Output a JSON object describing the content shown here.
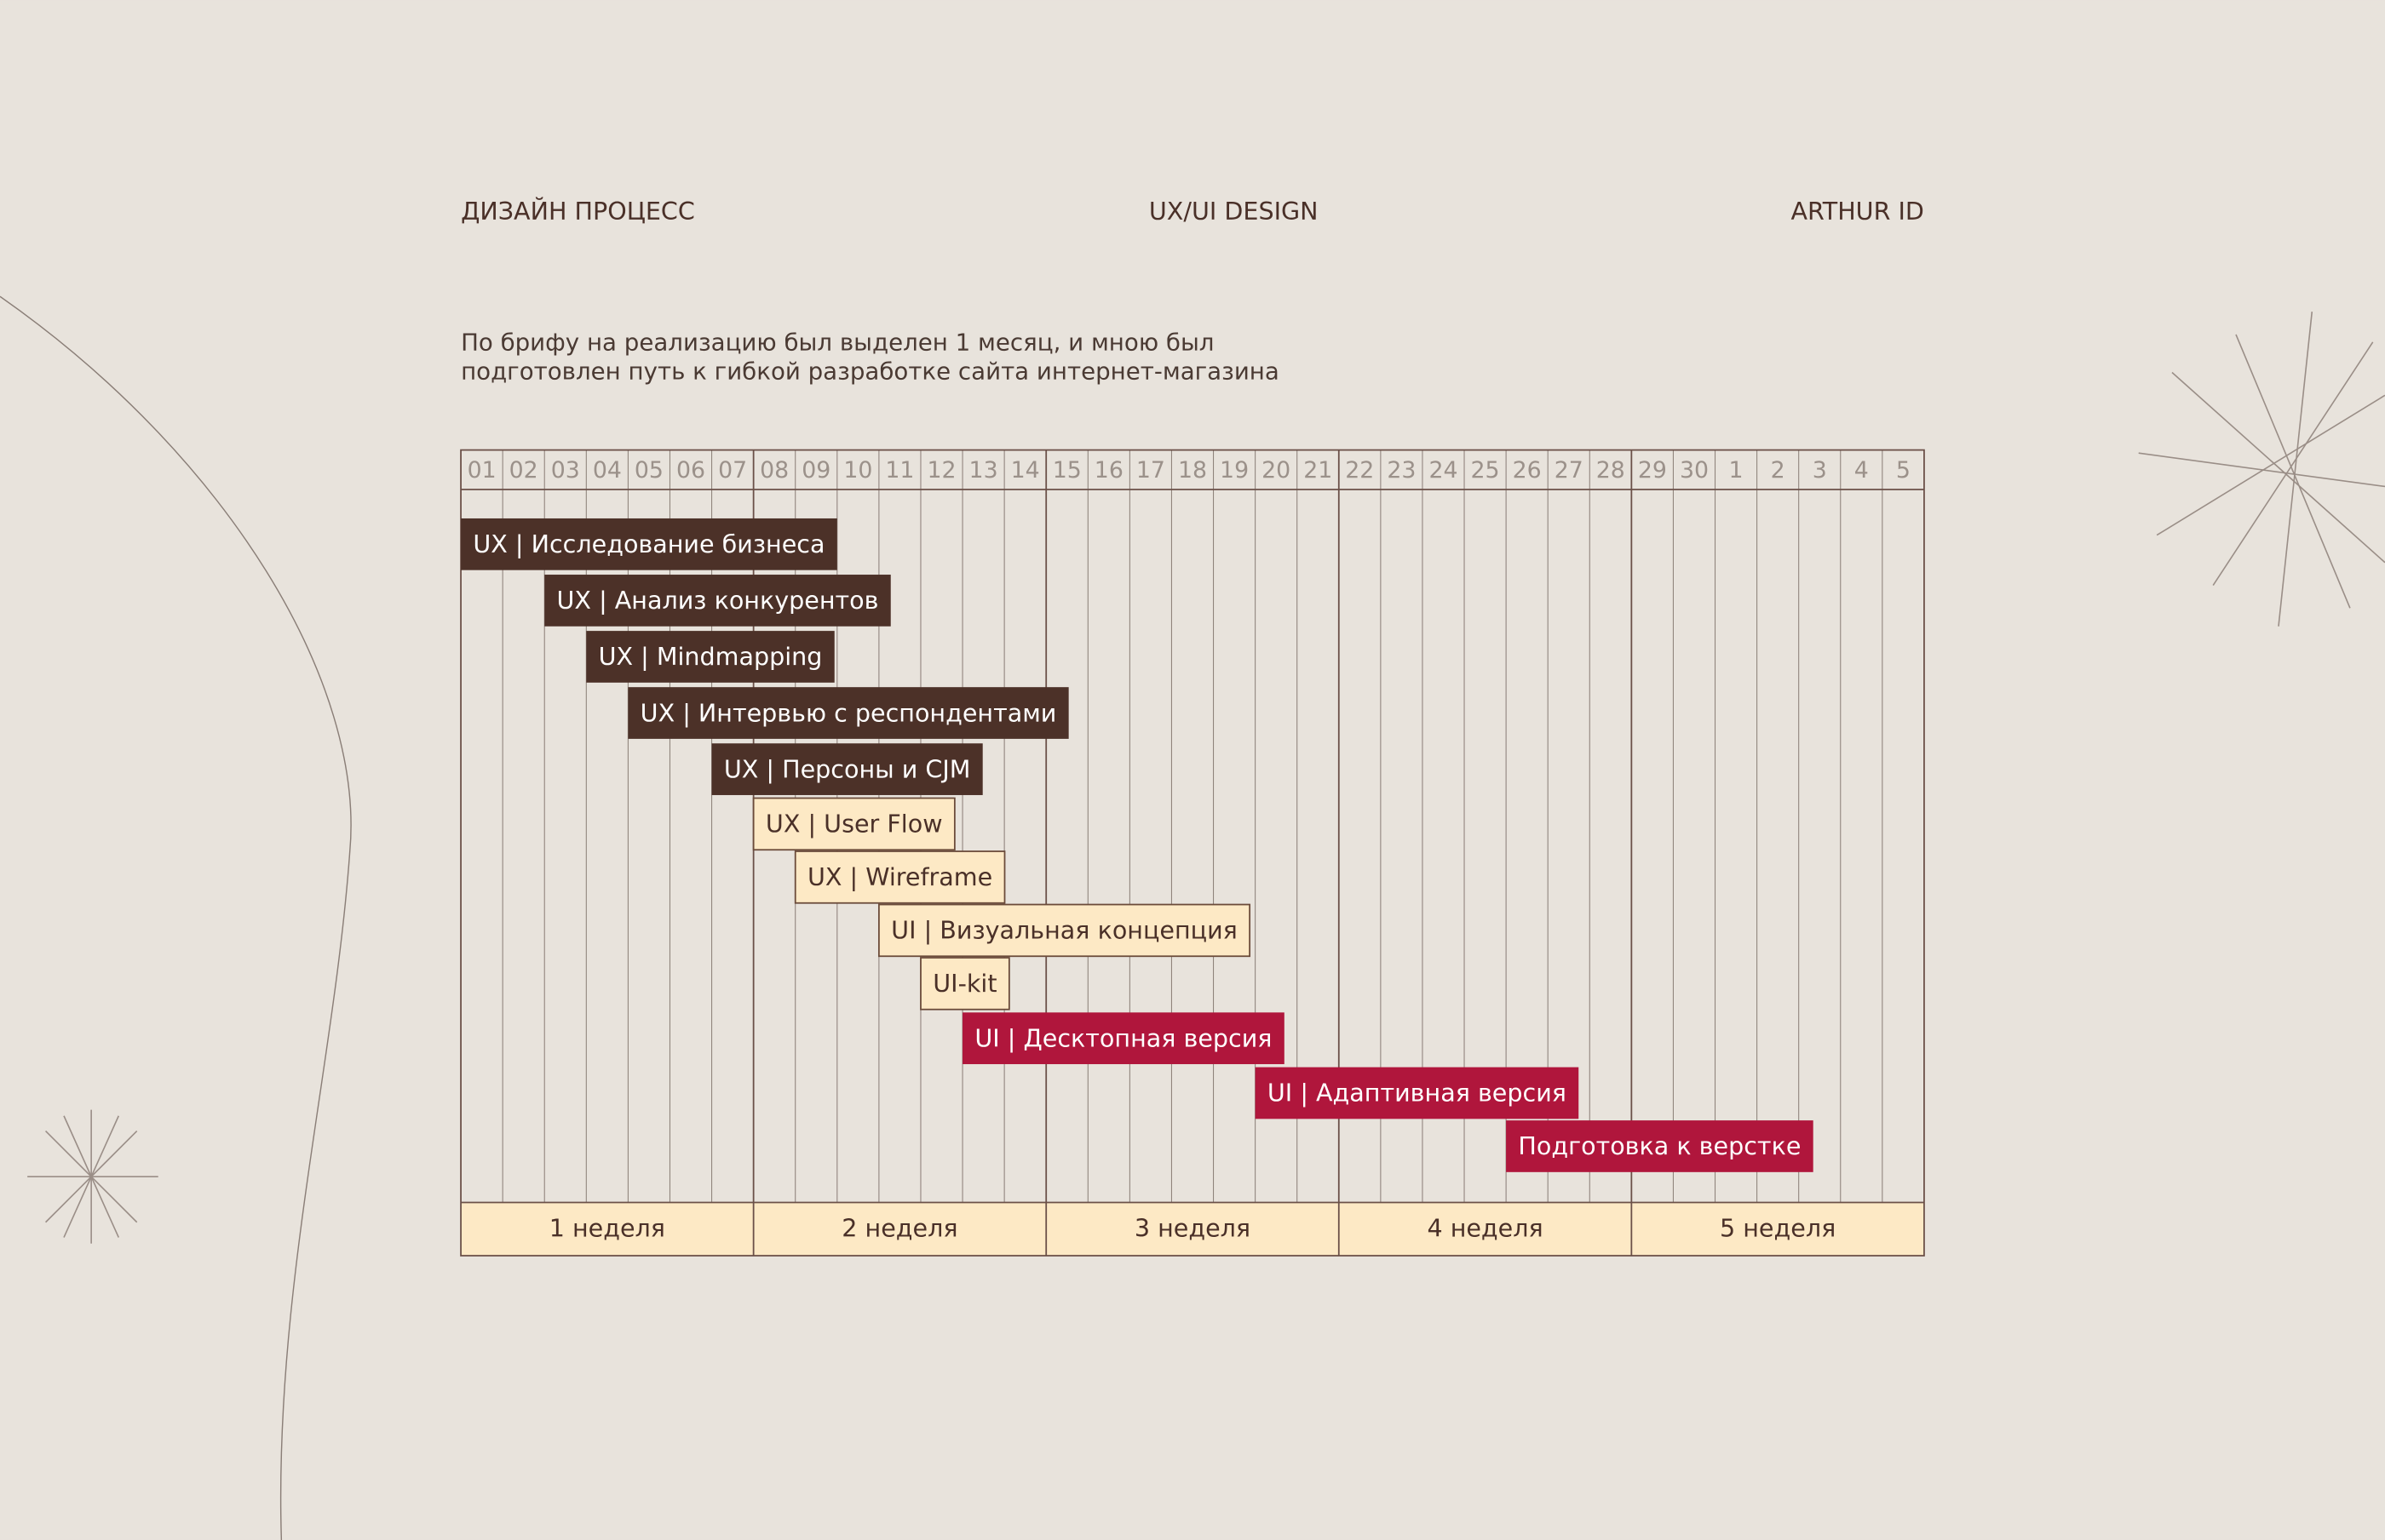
{
  "header": {
    "left": "ДИЗАЙН ПРОЦЕСС",
    "center": "UX/UI DESIGN",
    "right": "ARTHUR ID"
  },
  "intro": [
    "По брифу на реализацию был выделен 1 месяц, и мною был",
    "подготовлен путь к гибкой разработке сайта интернет-магазина"
  ],
  "days": [
    "01",
    "02",
    "03",
    "04",
    "05",
    "06",
    "07",
    "08",
    "09",
    "10",
    "11",
    "12",
    "13",
    "14",
    "15",
    "16",
    "17",
    "18",
    "19",
    "20",
    "21",
    "22",
    "23",
    "24",
    "25",
    "26",
    "27",
    "28",
    "29",
    "30",
    "1",
    "2",
    "3",
    "4",
    "5"
  ],
  "tasks": [
    {
      "label": "UX | Исследование бизнеса",
      "start": 0,
      "style": "dark"
    },
    {
      "label": "UX | Анализ конкурентов",
      "start": 2,
      "style": "dark"
    },
    {
      "label": "UX | Mindmapping",
      "start": 3,
      "style": "dark"
    },
    {
      "label": "UX | Интервью с респондентами",
      "start": 4,
      "style": "dark"
    },
    {
      "label": "UX | Персоны и CJM",
      "start": 6,
      "style": "dark"
    },
    {
      "label": "UX | User Flow",
      "start": 7,
      "style": "light"
    },
    {
      "label": "UX | Wireframe",
      "start": 8,
      "style": "light"
    },
    {
      "label": "UI | Визуальная концепция",
      "start": 10,
      "style": "light"
    },
    {
      "label": "UI-kit",
      "start": 11,
      "style": "light"
    },
    {
      "label": "UI | Десктопная версия",
      "start": 12,
      "style": "red"
    },
    {
      "label": "UI | Адаптивная версия",
      "start": 19,
      "style": "red"
    },
    {
      "label": "Подготовка к верстке",
      "start": 25,
      "style": "red"
    }
  ],
  "weeks": [
    "1 неделя",
    "2 неделя",
    "3 неделя",
    "4 неделя",
    "5 неделя"
  ]
}
